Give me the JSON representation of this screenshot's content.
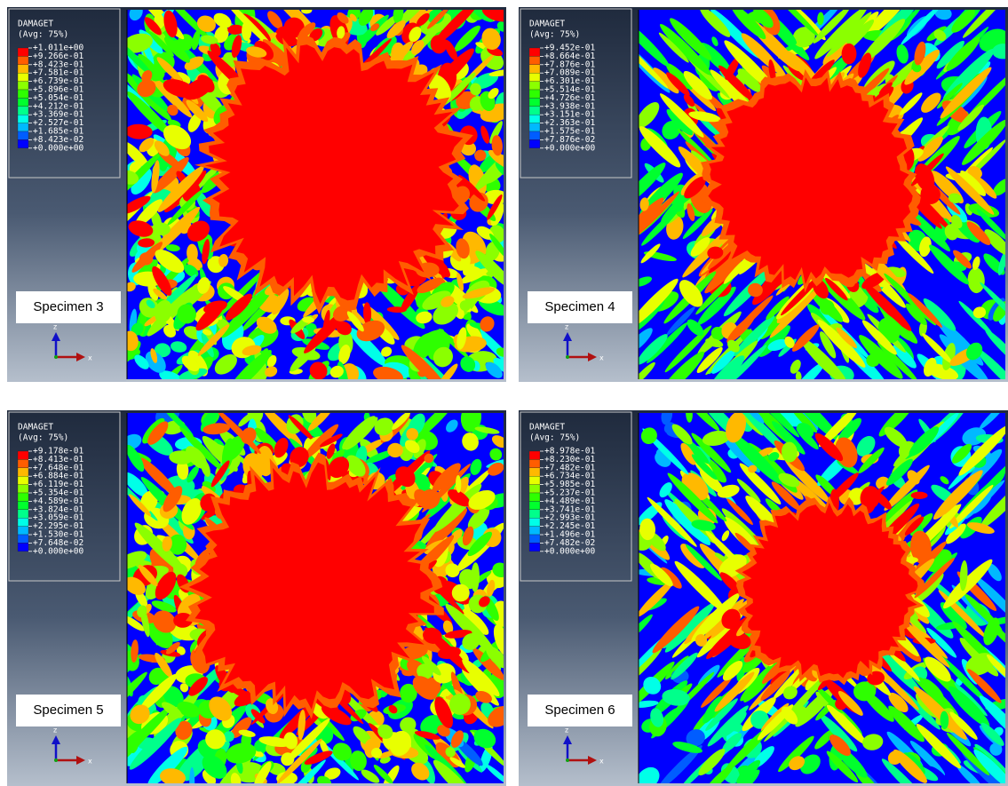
{
  "panels": [
    {
      "legend_title": "DAMAGET",
      "legend_subtitle": "(Avg: 75%)",
      "legend_values": [
        "+1.011e+00",
        "+9.266e-01",
        "+8.423e-01",
        "+7.581e-01",
        "+6.739e-01",
        "+5.896e-01",
        "+5.054e-01",
        "+4.212e-01",
        "+3.369e-01",
        "+2.527e-01",
        "+1.685e-01",
        "+8.423e-02",
        "+0.000e+00"
      ],
      "label": "Specimen 3",
      "axis_z": "z",
      "axis_x": "x"
    },
    {
      "legend_title": "DAMAGET",
      "legend_subtitle": "(Avg: 75%)",
      "legend_values": [
        "+9.452e-01",
        "+8.664e-01",
        "+7.876e-01",
        "+7.089e-01",
        "+6.301e-01",
        "+5.514e-01",
        "+4.726e-01",
        "+3.938e-01",
        "+3.151e-01",
        "+2.363e-01",
        "+1.575e-01",
        "+7.876e-02",
        "+0.000e+00"
      ],
      "label": "Specimen 4",
      "axis_z": "z",
      "axis_x": "x"
    },
    {
      "legend_title": "DAMAGET",
      "legend_subtitle": "(Avg: 75%)",
      "legend_values": [
        "+9.178e-01",
        "+8.413e-01",
        "+7.648e-01",
        "+6.884e-01",
        "+6.119e-01",
        "+5.354e-01",
        "+4.589e-01",
        "+3.824e-01",
        "+3.059e-01",
        "+2.295e-01",
        "+1.530e-01",
        "+7.648e-02",
        "+0.000e+00"
      ],
      "label": "Specimen 5",
      "axis_z": "z",
      "axis_x": "x"
    },
    {
      "legend_title": "DAMAGET",
      "legend_subtitle": "(Avg: 75%)",
      "legend_values": [
        "+8.978e-01",
        "+8.230e-01",
        "+7.482e-01",
        "+6.734e-01",
        "+5.985e-01",
        "+5.237e-01",
        "+4.489e-01",
        "+3.741e-01",
        "+2.993e-01",
        "+2.245e-01",
        "+1.496e-01",
        "+7.482e-02",
        "+0.000e+00"
      ],
      "label": "Specimen 6",
      "axis_z": "z",
      "axis_x": "x"
    }
  ]
}
